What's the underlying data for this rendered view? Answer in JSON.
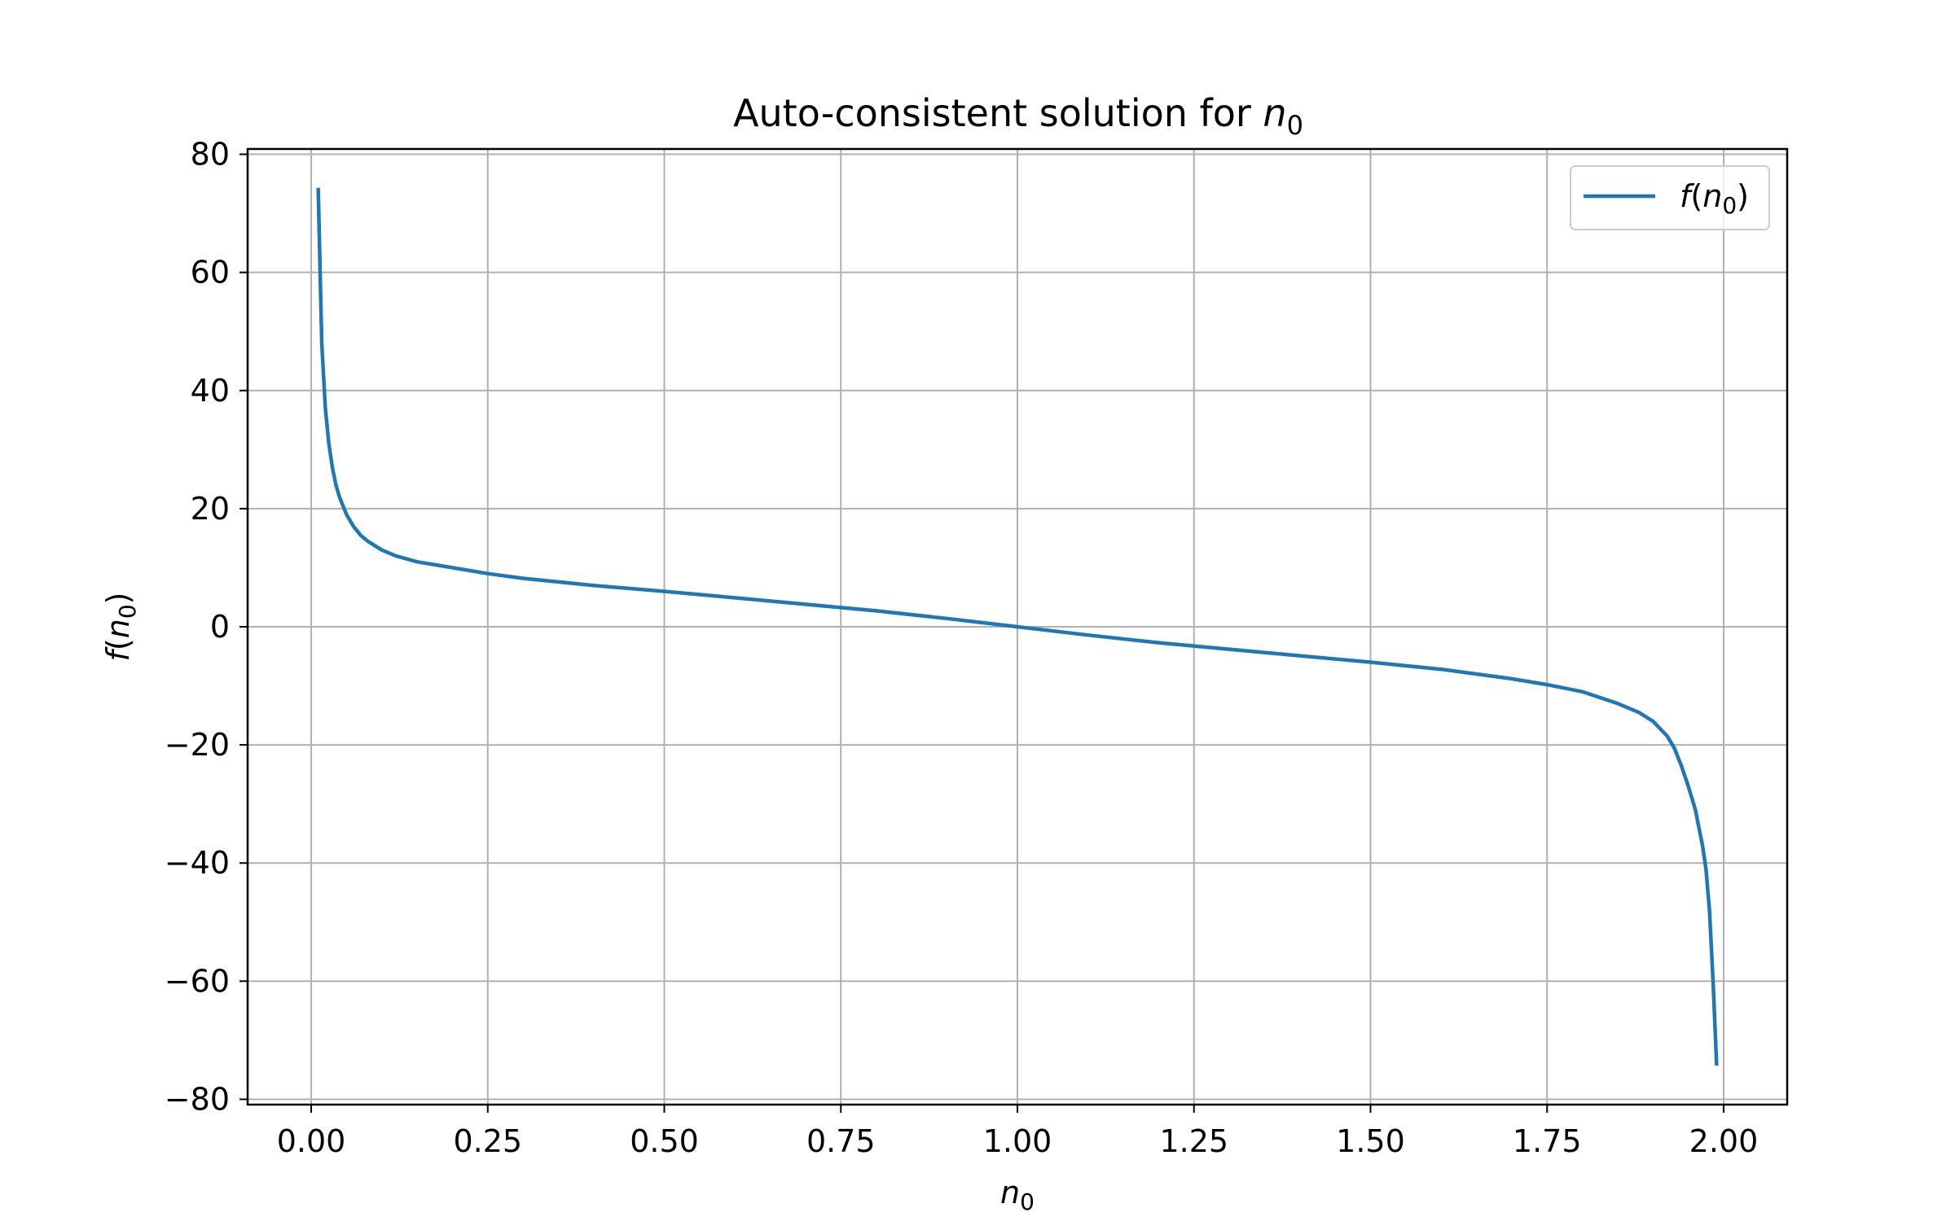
{
  "chart_data": {
    "type": "line",
    "title": {
      "prefix": "Auto-consistent solution for ",
      "var": "n",
      "sub": "0"
    },
    "xlabel": {
      "var": "n",
      "sub": "0"
    },
    "ylabel": {
      "fn": "f",
      "open": "(",
      "var": "n",
      "sub": "0",
      "close": ")"
    },
    "xlim": [
      -0.09,
      2.09
    ],
    "ylim": [
      -80.9,
      80.9
    ],
    "x_ticks": [
      0.0,
      0.25,
      0.5,
      0.75,
      1.0,
      1.25,
      1.5,
      1.75,
      2.0
    ],
    "x_tick_labels": [
      "0.00",
      "0.25",
      "0.50",
      "0.75",
      "1.00",
      "1.25",
      "1.50",
      "1.75",
      "2.00"
    ],
    "y_ticks": [
      -80,
      -60,
      -40,
      -20,
      0,
      20,
      40,
      60,
      80
    ],
    "y_tick_labels": [
      "−80",
      "−60",
      "−40",
      "−20",
      "0",
      "20",
      "40",
      "60",
      "80"
    ],
    "grid": true,
    "legend_position": "top-right",
    "colors": {
      "series": "#1f77b4",
      "grid": "#b0b0b0",
      "axes": "#000000"
    },
    "series": [
      {
        "name": {
          "fn": "f",
          "open": "(",
          "var": "n",
          "sub": "0",
          "close": ")"
        },
        "x": [
          0.01,
          0.015,
          0.02,
          0.025,
          0.03,
          0.035,
          0.04,
          0.05,
          0.06,
          0.07,
          0.08,
          0.1,
          0.12,
          0.15,
          0.2,
          0.25,
          0.3,
          0.4,
          0.5,
          0.6,
          0.7,
          0.8,
          0.9,
          1.0,
          1.1,
          1.2,
          1.3,
          1.4,
          1.5,
          1.6,
          1.7,
          1.75,
          1.8,
          1.85,
          1.88,
          1.9,
          1.92,
          1.93,
          1.94,
          1.95,
          1.96,
          1.965,
          1.97,
          1.975,
          1.98,
          1.985,
          1.99
        ],
        "y": [
          74,
          48,
          37,
          31,
          27,
          24,
          22,
          19,
          17,
          15.5,
          14.5,
          13,
          12,
          11,
          10,
          9,
          8.2,
          7,
          6,
          4.9,
          3.8,
          2.7,
          1.4,
          0,
          -1.4,
          -2.7,
          -3.8,
          -4.9,
          -6,
          -7.2,
          -8.8,
          -9.8,
          -11,
          -13,
          -14.5,
          -16,
          -18.5,
          -20.5,
          -23.5,
          -27,
          -31,
          -34,
          -37,
          -41,
          -48,
          -60,
          -74
        ]
      }
    ]
  }
}
